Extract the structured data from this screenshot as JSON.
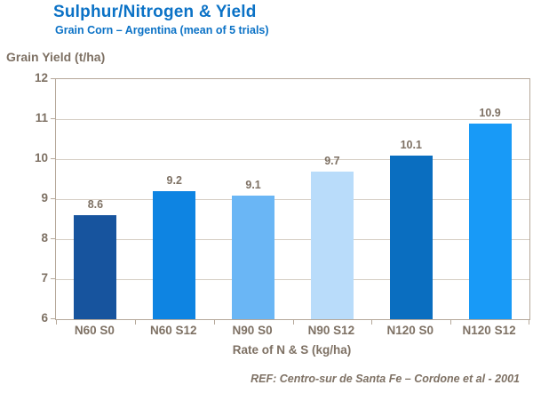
{
  "chart_data": {
    "type": "bar",
    "title": "Sulphur/Nitrogen & Yield",
    "subtitle": "Grain Corn – Argentina (mean of 5 trials)",
    "ylabel": "Grain Yield (t/ha)",
    "xlabel": "Rate of N & S (kg/ha)",
    "categories": [
      "N60 S0",
      "N60 S12",
      "N90 S0",
      "N90 S12",
      "N120 S0",
      "N120 S12"
    ],
    "values": [
      8.6,
      9.2,
      9.1,
      9.7,
      10.1,
      10.9
    ],
    "value_labels": [
      "8.6",
      "9.2",
      "9.1",
      "9.7",
      "10.1",
      "10.9"
    ],
    "ylim": [
      6,
      12
    ],
    "yticks": [
      12,
      11,
      10,
      9,
      8,
      7,
      6
    ],
    "bar_colors": [
      "#17549e",
      "#0e84e2",
      "#6ab6f5",
      "#b9dcfa",
      "#0a6ec0",
      "#189af7"
    ],
    "grid": "horizontal",
    "legend": "none"
  },
  "footer": {
    "reference": "REF: Centro-sur de Santa Fe – Cordone et al - 2001"
  },
  "colors": {
    "title_blue": "#0b72c6",
    "axis_text": "#7e7164",
    "axis_line": "#b5a89a",
    "gridline": "#d5cdc3",
    "background": "#ffffff"
  }
}
